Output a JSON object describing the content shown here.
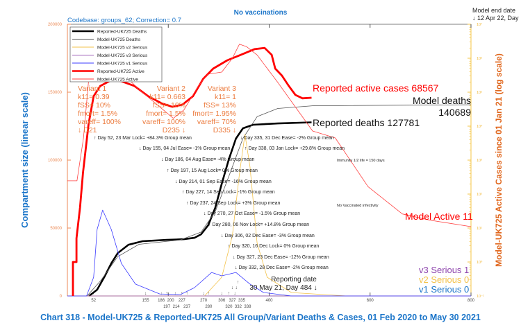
{
  "header": {
    "title": "No vaccinations",
    "codebase": "Codebase: groups_62; Correction= 0.7",
    "model_end_line1": "Model end date",
    "model_end_line2": "↓ 12 Apr 22, Day",
    "footer_title": "Chart 318 - Model-UK725 & Reported-UK725 All Group/Variant Deaths & Cases, 01 Feb 2020 to May 30 2021"
  },
  "colors": {
    "title": "#1b75c9",
    "left_axis": "#ec8a55",
    "right_axis": "#f5c443",
    "right_label": "#e0661c",
    "reported_active": "#ff0000",
    "model_active": "#ff4040",
    "reported_deaths": "#000000",
    "model_deaths": "#555555",
    "v1": "#3a3aff",
    "v2": "#f3c24a",
    "v3": "#9b59b6"
  },
  "chart_data": {
    "type": "line",
    "ylabel": "Compartment size (linear scale)",
    "ylabel_right": "Model-UK725 Active Cases since 01 Jan 21 (log scale)",
    "xlim": [
      0,
      800
    ],
    "ylim": [
      0,
      200000
    ],
    "ylim_right_log": [
      0.1,
      10000000
    ],
    "x_ticks": [
      "200",
      "400",
      "600",
      "800"
    ],
    "y_ticks": [
      "0",
      "50000",
      "100000",
      "150000",
      "200000"
    ],
    "y_ticks_right": [
      "10⁻¹",
      "10⁰",
      "10¹",
      "10²",
      "10³",
      "10⁴",
      "10⁵",
      "10⁶",
      "10⁷"
    ],
    "legend": [
      "Reported-UK725 Deaths",
      "Model-UK725 Deaths",
      "Model-UK725 v2 Serious",
      "Model-UK725 v3 Serious",
      "Model-UK725 v1 Serious",
      "Reported-UK725 Active",
      "Model-UK725 Active"
    ],
    "series": [
      {
        "name": "Reported-UK725 Deaths",
        "scale": "linear",
        "color": "#000000",
        "x": [
          43,
          59,
          73,
          87,
          100,
          121,
          149,
          197,
          231,
          252,
          265,
          279,
          293,
          306,
          320,
          334,
          348,
          368,
          417,
          484
        ],
        "y": [
          0,
          4600,
          13800,
          24000,
          31600,
          37700,
          40300,
          41300,
          41800,
          42800,
          45400,
          52000,
          64800,
          82600,
          100500,
          115800,
          123400,
          126000,
          127000,
          127781
        ]
      },
      {
        "name": "Model-UK725 Deaths",
        "scale": "linear",
        "color": "#555555",
        "x": [
          0,
          39,
          66,
          100,
          142,
          224,
          265,
          293,
          320,
          348,
          376,
          417,
          486,
          800
        ],
        "y": [
          0,
          0,
          11200,
          29000,
          38000,
          41300,
          47000,
          62000,
          88000,
          116000,
          132000,
          138000,
          140000,
          140689
        ]
      },
      {
        "name": "Model-UK725 v2 Serious",
        "scale": "linear",
        "color": "#f3c24a",
        "x": [
          0,
          272,
          306,
          327,
          341,
          352,
          362,
          376,
          396,
          444,
          554,
          800
        ],
        "y": [
          0,
          0,
          13800,
          44400,
          90000,
          119000,
          95000,
          39000,
          13800,
          2500,
          0,
          0
        ]
      },
      {
        "name": "Model-UK725 v3 Serious",
        "scale": "linear",
        "color": "#9b59b6",
        "x": [
          0,
          800
        ],
        "y": [
          0,
          1
        ]
      },
      {
        "name": "Model-UK725 v1 Serious",
        "scale": "linear",
        "color": "#3a3aff",
        "x": [
          0,
          38,
          52,
          59,
          70,
          87,
          107,
          135,
          183,
          224,
          252,
          286,
          306,
          334,
          362,
          389,
          444,
          800
        ],
        "y": [
          0,
          0,
          13800,
          49000,
          63200,
          49000,
          24000,
          8700,
          1500,
          1000,
          6100,
          17300,
          14800,
          17300,
          8700,
          2500,
          0,
          0
        ]
      },
      {
        "name": "Reported-UK725 Active",
        "scale": "log",
        "color": "#ff0000",
        "x": [
          11,
          11,
          18,
          18,
          25,
          31,
          42,
          52,
          65,
          86,
          106,
          133,
          160,
          187,
          208,
          228,
          249,
          269,
          289,
          317,
          344,
          371,
          391,
          405,
          412,
          425,
          439,
          452,
          466,
          484
        ],
        "y": [
          0.1,
          1,
          1,
          5,
          40,
          430,
          11500,
          76000,
          152000,
          222000,
          213000,
          152000,
          76000,
          47000,
          37000,
          43000,
          76000,
          245000,
          495000,
          870000,
          1260000,
          1850000,
          2000000,
          1260000,
          495000,
          310000,
          152000,
          83000,
          66000,
          68567
        ]
      },
      {
        "name": "Model-UK725 Active",
        "scale": "log",
        "color": "#ff4040",
        "x": [
          0,
          19,
          32,
          43,
          52,
          73,
          100,
          142,
          183,
          210,
          231,
          259,
          279,
          306,
          327,
          341,
          355,
          376,
          417,
          486,
          531,
          596,
          664,
          719,
          800
        ],
        "y": [
          245,
          245,
          4500,
          310000,
          1200000,
          1150000,
          490000,
          120000,
          37000,
          17000,
          30000,
          150000,
          340000,
          390000,
          1000000,
          2600000,
          2200000,
          1250000,
          195000,
          7200,
          4500,
          165,
          26,
          17,
          11
        ]
      }
    ],
    "variants": [
      {
        "lines": [
          "Variant 1",
          "k11= 0.39",
          "fSS= 10%",
          "fmort= 1.5%",
          "vareff= 100%",
          "↓ D21"
        ]
      },
      {
        "lines": [
          "Variant 2",
          "k11= 0.663",
          "fSS= 10%",
          "fmort= 1.5%",
          "vareff= 100%",
          "D235 ↓"
        ]
      },
      {
        "lines": [
          "Variant 3",
          "k11= 1",
          "fSS= 13%",
          "fmort= 1.95%",
          "vareff= 70%",
          "D335 ↓"
        ]
      }
    ],
    "events": [
      {
        "day": 52,
        "dir": "↑",
        "text": "↑ Day 52, 23 Mar Lock= +84.3% Group mean"
      },
      {
        "day": 155,
        "dir": "↓",
        "text": "↓ Day 155, 04 Jul Ease= -1% Group mean"
      },
      {
        "day": 338,
        "dir": "↑",
        "text": "↑ Day 338, 03 Jan Lock= +29.8% Group mean"
      },
      {
        "day": 186,
        "dir": "↓",
        "text": "↓ Day 186, 04 Aug Ease= -4% Group mean"
      },
      {
        "day": 197,
        "dir": "↑",
        "text": "↑ Day 197, 15 Aug Lock= 0% Group mean"
      },
      {
        "day": 214,
        "dir": "↓",
        "text": "↓ Day 214, 01 Sep Ease= -16% Group mean"
      },
      {
        "day": 227,
        "dir": "↑",
        "text": "↑ Day 227, 14 Sep Lock= -1% Group mean"
      },
      {
        "day": 237,
        "dir": "↑",
        "text": "↑ Day 237, 24 Sep Lock= +3% Group mean"
      },
      {
        "day": 270,
        "dir": "↓",
        "text": "↓ Day 270, 27 Oct Ease= -1.5% Group mean"
      },
      {
        "day": 280,
        "dir": "↑",
        "text": "↑ Day 280, 06 Nov Lock= +14.8% Group mean"
      },
      {
        "day": 306,
        "dir": "↓",
        "text": "↓ Day 306, 02 Dec Ease= -3% Group mean"
      },
      {
        "day": 320,
        "dir": "↑",
        "text": "↑ Day 320, 16 Dec Lock= 0% Group mean"
      },
      {
        "day": 327,
        "dir": "↓",
        "text": "↓ Day 327, 23 Dec Ease= -12% Group mean"
      },
      {
        "day": 332,
        "dir": "↓",
        "text": "↓ Day 332, 28 Dec Ease= -2% Group mean"
      },
      {
        "day": 335,
        "dir": "↓",
        "text": "↓ Day 335, 31 Dec Ease= -2% Group mean"
      }
    ],
    "annotations": {
      "immunity": "Immunity 1/2 life = 150 days",
      "no_vacc": "No Vaccinated infectivity",
      "reporting_line1": "Reporting date",
      "reporting_line2": "30 May 21, Day 484 ↓",
      "reported_active": "Reported active cases 68567",
      "model_deaths": "Model deaths",
      "model_deaths_value": "140689",
      "reported_deaths": "Reported deaths 127781",
      "model_active": "Model Active 11",
      "v3_serious": "v3 Serious 1",
      "v2_serious": "v2 Serious 0",
      "v1_serious": "v1 Serious 0"
    }
  }
}
